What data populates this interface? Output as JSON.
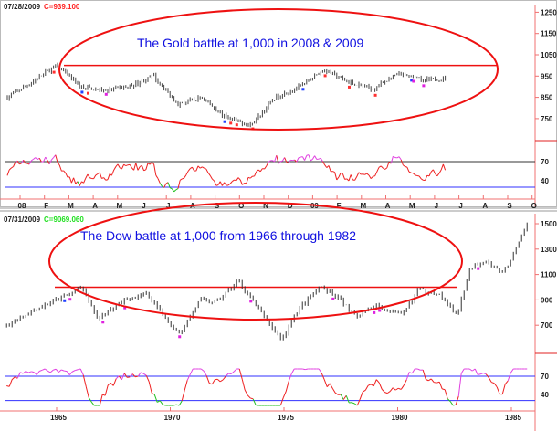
{
  "chart_data": [
    {
      "type": "line",
      "title": "Gold",
      "header_date": "07/28/2009",
      "header_close": "C=939.100",
      "annotation": "The Gold battle at 1,000 in 2008 & 2009",
      "resistance_level": 1000,
      "ylim": [
        700,
        1280
      ],
      "yticks": [
        "1250",
        "1150",
        "1050",
        "950",
        "850",
        "750"
      ],
      "osc_ticks": [
        "70",
        "40"
      ],
      "osc_levels": [
        70,
        30
      ],
      "xticks": [
        "08",
        "F",
        "M",
        "A",
        "M",
        "J",
        "J",
        "A",
        "S",
        "O",
        "N",
        "D",
        "09",
        "F",
        "M",
        "A",
        "M",
        "J",
        "J",
        "A",
        "S",
        "O"
      ],
      "x_months": [
        "2008-01",
        "2008-02",
        "2008-03",
        "2008-04",
        "2008-05",
        "2008-06",
        "2008-07",
        "2008-08",
        "2008-09",
        "2008-10",
        "2008-11",
        "2008-12",
        "2009-01",
        "2009-02",
        "2009-03",
        "2009-04",
        "2009-05",
        "2009-06",
        "2009-07"
      ],
      "values": [
        850,
        920,
        1000,
        900,
        880,
        900,
        950,
        820,
        850,
        750,
        720,
        850,
        900,
        980,
        920,
        890,
        960,
        930,
        939
      ]
    },
    {
      "type": "line",
      "title": "Dow",
      "header_date": "07/31/2009",
      "header_close": "C=9069.060",
      "annotation": "The Dow battle at 1,000 from 1966 through 1982",
      "resistance_level": 1000,
      "ylim": [
        560,
        1560
      ],
      "yticks": [
        "1500",
        "1300",
        "1100",
        "900",
        "700"
      ],
      "osc_ticks": [
        "70",
        "40"
      ],
      "osc_levels": [
        70,
        30
      ],
      "xticks": [
        "1965",
        "1970",
        "1975",
        "1980",
        "1985"
      ],
      "x_years": [
        1962.8,
        1964,
        1965,
        1966.1,
        1966.8,
        1968,
        1968.9,
        1970.4,
        1971.3,
        1972,
        1973,
        1974,
        1974.9,
        1975.6,
        1976.6,
        1977.5,
        1978.2,
        1979,
        1980.2,
        1980.9,
        1981.8,
        1982.6,
        1983.2,
        1983.9,
        1984.6,
        1985.2,
        1985.7
      ],
      "values": [
        700,
        820,
        900,
        1000,
        750,
        900,
        950,
        630,
        900,
        880,
        1050,
        800,
        580,
        820,
        1000,
        900,
        760,
        850,
        780,
        980,
        950,
        780,
        1150,
        1220,
        1100,
        1300,
        1500
      ]
    }
  ]
}
